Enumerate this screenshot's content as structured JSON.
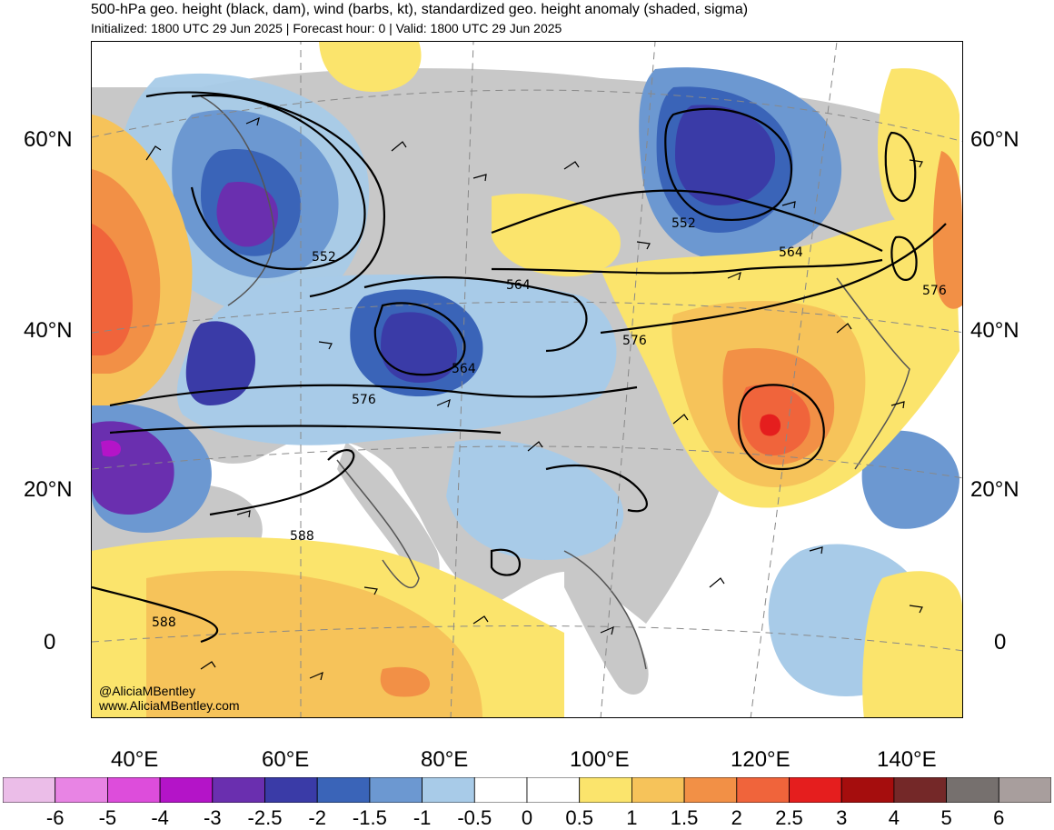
{
  "title": "500-hPa geo. height (black, dam), wind (barbs, kt), standardized geo. height anomaly (shaded, sigma)",
  "subtitle": "Initialized: 1800 UTC 29 Jun 2025 | Forecast hour: 0 | Valid: 1800 UTC 29 Jun 2025",
  "latitude_labels": [
    "60°N",
    "40°N",
    "20°N",
    "0"
  ],
  "longitude_labels": [
    "40°E",
    "60°E",
    "80°E",
    "100°E",
    "120°E",
    "140°E"
  ],
  "contour_labels": [
    "552",
    "564",
    "564",
    "576",
    "552",
    "564",
    "576",
    "576",
    "588",
    "588"
  ],
  "credit": {
    "handle": "@AliciaMBentley",
    "site": "www.AliciaMBentley.com"
  },
  "colorbar": {
    "labels": [
      "-6",
      "-5",
      "-4",
      "-3",
      "-2.5",
      "-2",
      "-1.5",
      "-1",
      "-0.5",
      "0",
      "0.5",
      "1",
      "1.5",
      "2",
      "2.5",
      "3",
      "4",
      "5",
      "6"
    ],
    "colors": [
      "#ebbde8",
      "#e884e4",
      "#dd4ddb",
      "#b414c8",
      "#6a2faf",
      "#3a3ba7",
      "#3a64b8",
      "#6c98d1",
      "#a8cbe8",
      "#ffffff",
      "#ffffff",
      "#fbe46c",
      "#f6c35a",
      "#f29046",
      "#f0643b",
      "#e51e1e",
      "#a50d0d",
      "#742828",
      "#76706e",
      "#a89e9d"
    ]
  },
  "colors": {
    "land": "#c8c8c8",
    "coast": "#555555",
    "contour": "#000000"
  }
}
